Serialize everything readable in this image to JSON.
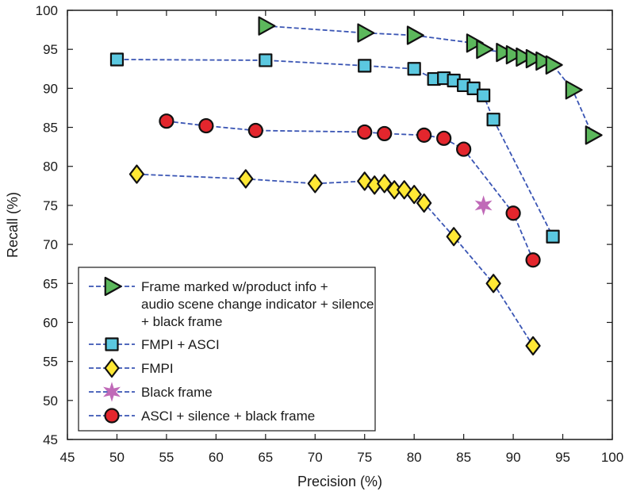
{
  "chart_data": {
    "type": "line",
    "xlabel": "Precision (%)",
    "ylabel": "Recall (%)",
    "xlim": [
      45,
      100
    ],
    "ylim": [
      45,
      100
    ],
    "xticks": [
      45,
      50,
      55,
      60,
      65,
      70,
      75,
      80,
      85,
      90,
      95,
      100
    ],
    "yticks": [
      45,
      50,
      55,
      60,
      65,
      70,
      75,
      80,
      85,
      90,
      95,
      100
    ],
    "grid": false,
    "legend_position": "bottom-left",
    "series": [
      {
        "name": "Frame marked w/product info + audio scene change indicator + silence + black frame",
        "legend_lines": [
          "Frame marked w/product info +",
          "audio scene change indicator + silence",
          "+ black frame"
        ],
        "marker": "triangle-right",
        "fill": "#5cb85c",
        "points": [
          [
            65,
            98
          ],
          [
            75,
            97.1
          ],
          [
            80,
            96.8
          ],
          [
            86,
            95.8
          ],
          [
            87,
            95
          ],
          [
            89,
            94.6
          ],
          [
            90,
            94.3
          ],
          [
            91,
            94
          ],
          [
            92,
            93.8
          ],
          [
            93,
            93.5
          ],
          [
            94,
            93
          ],
          [
            96,
            89.8
          ],
          [
            98,
            84
          ]
        ]
      },
      {
        "name": "FMPI + ASCI",
        "legend_lines": [
          "FMPI + ASCI"
        ],
        "marker": "square",
        "fill": "#5bc8e0",
        "points": [
          [
            50,
            93.7
          ],
          [
            65,
            93.6
          ],
          [
            75,
            92.9
          ],
          [
            80,
            92.5
          ],
          [
            82,
            91.2
          ],
          [
            83,
            91.3
          ],
          [
            84,
            91
          ],
          [
            85,
            90.4
          ],
          [
            86,
            90
          ],
          [
            87,
            89.1
          ],
          [
            88,
            86
          ],
          [
            94,
            71
          ]
        ]
      },
      {
        "name": "FMPI",
        "legend_lines": [
          "FMPI"
        ],
        "marker": "diamond",
        "fill": "#ffe835",
        "points": [
          [
            52,
            79
          ],
          [
            63,
            78.4
          ],
          [
            70,
            77.8
          ],
          [
            75,
            78.1
          ],
          [
            76,
            77.6
          ],
          [
            77,
            77.8
          ],
          [
            78,
            77
          ],
          [
            79,
            77
          ],
          [
            80,
            76.4
          ],
          [
            81,
            75.3
          ],
          [
            84,
            71
          ],
          [
            88,
            65
          ],
          [
            92,
            57
          ]
        ]
      },
      {
        "name": "Black frame",
        "legend_lines": [
          "Black frame"
        ],
        "marker": "star",
        "fill": "#c06ab8",
        "no_line": true,
        "points": [
          [
            87,
            75
          ]
        ]
      },
      {
        "name": "ASCI + silence + black frame",
        "legend_lines": [
          "ASCI + silence + black frame"
        ],
        "marker": "circle",
        "fill": "#e3262d",
        "points": [
          [
            55,
            85.8
          ],
          [
            59,
            85.2
          ],
          [
            64,
            84.6
          ],
          [
            75,
            84.4
          ],
          [
            77,
            84.2
          ],
          [
            81,
            84
          ],
          [
            83,
            83.6
          ],
          [
            85,
            82.2
          ],
          [
            90,
            74
          ],
          [
            92,
            68
          ]
        ]
      }
    ]
  }
}
